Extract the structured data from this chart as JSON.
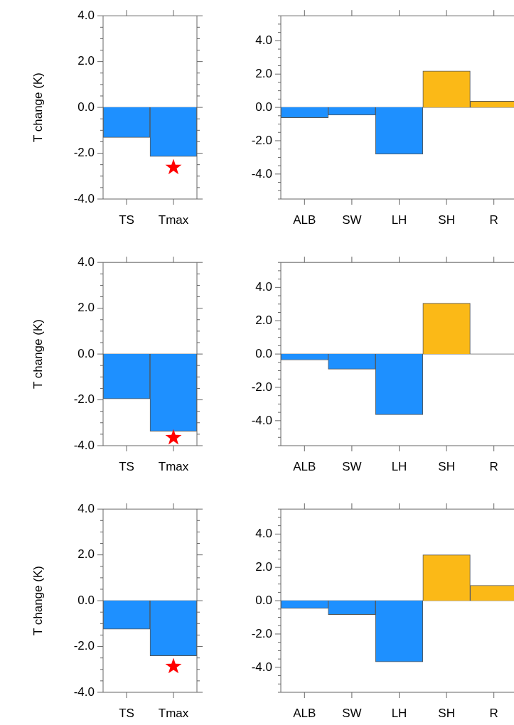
{
  "chart_data": [
    {
      "type": "bar",
      "ylabel": "T change (K)",
      "categories": [
        "TS",
        "Tmax"
      ],
      "ylim": [
        -4,
        4
      ],
      "yticks": [
        {
          "value": -4,
          "label": "-4.0"
        },
        {
          "value": -3.5,
          "label": null
        },
        {
          "value": -3,
          "label": null
        },
        {
          "value": -2.5,
          "label": null
        },
        {
          "value": -2,
          "label": "-2.0"
        },
        {
          "value": -1.5,
          "label": null
        },
        {
          "value": -1,
          "label": null
        },
        {
          "value": -0.5,
          "label": null
        },
        {
          "value": 0,
          "label": "0.0"
        },
        {
          "value": 0.5,
          "label": null
        },
        {
          "value": 1,
          "label": null
        },
        {
          "value": 1.5,
          "label": null
        },
        {
          "value": 2,
          "label": "2.0"
        },
        {
          "value": 2.5,
          "label": null
        },
        {
          "value": 3,
          "label": null
        },
        {
          "value": 3.5,
          "label": null
        },
        {
          "value": 4,
          "label": "4.0"
        }
      ],
      "grid": false,
      "marker": "star",
      "ref_lines": [
        {
          "axis": "y",
          "value": 0,
          "color": "#888888"
        }
      ],
      "series": [
        {
          "type": "bar",
          "color": "#1e90ff",
          "values": [
            -1.31,
            -2.14
          ]
        },
        {
          "type": "scatter",
          "color": "#ff0000",
          "x": [
            "Tmax"
          ],
          "values": [
            -2.62
          ]
        }
      ]
    },
    {
      "type": "bar",
      "categories": [
        "ALB",
        "SW",
        "LH",
        "SH",
        "R"
      ],
      "ylim": [
        -5.5,
        5.5
      ],
      "yticks": [
        {
          "value": -5.5,
          "label": null
        },
        {
          "value": -5,
          "label": null
        },
        {
          "value": -4.5,
          "label": null
        },
        {
          "value": -4,
          "label": "-4.0"
        },
        {
          "value": -3.5,
          "label": null
        },
        {
          "value": -3,
          "label": null
        },
        {
          "value": -2.5,
          "label": null
        },
        {
          "value": -2,
          "label": "-2.0"
        },
        {
          "value": -1.5,
          "label": null
        },
        {
          "value": -1,
          "label": null
        },
        {
          "value": -0.5,
          "label": null
        },
        {
          "value": 0,
          "label": "0.0"
        },
        {
          "value": 0.5,
          "label": null
        },
        {
          "value": 1,
          "label": null
        },
        {
          "value": 1.5,
          "label": null
        },
        {
          "value": 2,
          "label": "2.0"
        },
        {
          "value": 2.5,
          "label": null
        },
        {
          "value": 3,
          "label": null
        },
        {
          "value": 3.5,
          "label": null
        },
        {
          "value": 4,
          "label": "4.0"
        },
        {
          "value": 4.5,
          "label": null
        },
        {
          "value": 5,
          "label": null
        },
        {
          "value": 5.5,
          "label": null
        }
      ],
      "grid": false,
      "ref_lines": [
        {
          "axis": "y",
          "value": 0,
          "color": "#888888"
        }
      ],
      "values": [
        -0.62,
        -0.46,
        -2.81,
        2.19,
        0.37
      ],
      "colors": [
        "#1e90ff",
        "#1e90ff",
        "#1e90ff",
        "#fbb917",
        "#fbb917"
      ]
    },
    {
      "type": "bar",
      "ylabel": "T change (K)",
      "categories": [
        "TS",
        "Tmax"
      ],
      "ylim": [
        -4,
        4
      ],
      "yticks": [
        {
          "value": -4,
          "label": "-4.0"
        },
        {
          "value": -3.5,
          "label": null
        },
        {
          "value": -3,
          "label": null
        },
        {
          "value": -2.5,
          "label": null
        },
        {
          "value": -2,
          "label": "-2.0"
        },
        {
          "value": -1.5,
          "label": null
        },
        {
          "value": -1,
          "label": null
        },
        {
          "value": -0.5,
          "label": null
        },
        {
          "value": 0,
          "label": "0.0"
        },
        {
          "value": 0.5,
          "label": null
        },
        {
          "value": 1,
          "label": null
        },
        {
          "value": 1.5,
          "label": null
        },
        {
          "value": 2,
          "label": "2.0"
        },
        {
          "value": 2.5,
          "label": null
        },
        {
          "value": 3,
          "label": null
        },
        {
          "value": 3.5,
          "label": null
        },
        {
          "value": 4,
          "label": "4.0"
        }
      ],
      "grid": false,
      "marker": "star",
      "ref_lines": [
        {
          "axis": "y",
          "value": 0,
          "color": "#888888"
        }
      ],
      "series": [
        {
          "type": "bar",
          "color": "#1e90ff",
          "values": [
            -1.96,
            -3.37
          ]
        },
        {
          "type": "scatter",
          "color": "#ff0000",
          "x": [
            "Tmax"
          ],
          "values": [
            -3.65
          ]
        }
      ]
    },
    {
      "type": "bar",
      "categories": [
        "ALB",
        "SW",
        "LH",
        "SH",
        "R"
      ],
      "ylim": [
        -5.5,
        5.5
      ],
      "yticks": [
        {
          "value": -5.5,
          "label": null
        },
        {
          "value": -5,
          "label": null
        },
        {
          "value": -4.5,
          "label": null
        },
        {
          "value": -4,
          "label": "-4.0"
        },
        {
          "value": -3.5,
          "label": null
        },
        {
          "value": -3,
          "label": null
        },
        {
          "value": -2.5,
          "label": null
        },
        {
          "value": -2,
          "label": "-2.0"
        },
        {
          "value": -1.5,
          "label": null
        },
        {
          "value": -1,
          "label": null
        },
        {
          "value": -0.5,
          "label": null
        },
        {
          "value": 0,
          "label": "0.0"
        },
        {
          "value": 0.5,
          "label": null
        },
        {
          "value": 1,
          "label": null
        },
        {
          "value": 1.5,
          "label": null
        },
        {
          "value": 2,
          "label": "2.0"
        },
        {
          "value": 2.5,
          "label": null
        },
        {
          "value": 3,
          "label": null
        },
        {
          "value": 3.5,
          "label": null
        },
        {
          "value": 4,
          "label": "4.0"
        },
        {
          "value": 4.5,
          "label": null
        },
        {
          "value": 5,
          "label": null
        },
        {
          "value": 5.5,
          "label": null
        }
      ],
      "grid": false,
      "ref_lines": [
        {
          "axis": "y",
          "value": 0,
          "color": "#888888"
        }
      ],
      "values": [
        -0.36,
        -0.91,
        -3.64,
        3.05,
        0
      ],
      "colors": [
        "#1e90ff",
        "#1e90ff",
        "#1e90ff",
        "#fbb917",
        "#fbb917"
      ]
    },
    {
      "type": "bar",
      "ylabel": "T change (K)",
      "categories": [
        "TS",
        "Tmax"
      ],
      "ylim": [
        -4,
        4
      ],
      "yticks": [
        {
          "value": -4,
          "label": "-4.0"
        },
        {
          "value": -3.5,
          "label": null
        },
        {
          "value": -3,
          "label": null
        },
        {
          "value": -2.5,
          "label": null
        },
        {
          "value": -2,
          "label": "-2.0"
        },
        {
          "value": -1.5,
          "label": null
        },
        {
          "value": -1,
          "label": null
        },
        {
          "value": -0.5,
          "label": null
        },
        {
          "value": 0,
          "label": "0.0"
        },
        {
          "value": 0.5,
          "label": null
        },
        {
          "value": 1,
          "label": null
        },
        {
          "value": 1.5,
          "label": null
        },
        {
          "value": 2,
          "label": "2.0"
        },
        {
          "value": 2.5,
          "label": null
        },
        {
          "value": 3,
          "label": null
        },
        {
          "value": 3.5,
          "label": null
        },
        {
          "value": 4,
          "label": "4.0"
        }
      ],
      "grid": false,
      "marker": "star",
      "ref_lines": [
        {
          "axis": "y",
          "value": 0,
          "color": "#888888"
        }
      ],
      "series": [
        {
          "type": "bar",
          "color": "#1e90ff",
          "values": [
            -1.24,
            -2.41
          ]
        },
        {
          "type": "scatter",
          "color": "#ff0000",
          "x": [
            "Tmax"
          ],
          "values": [
            -2.87
          ]
        }
      ]
    },
    {
      "type": "bar",
      "categories": [
        "ALB",
        "SW",
        "LH",
        "SH",
        "R"
      ],
      "ylim": [
        -5.5,
        5.5
      ],
      "yticks": [
        {
          "value": -5.5,
          "label": null
        },
        {
          "value": -5,
          "label": null
        },
        {
          "value": -4.5,
          "label": null
        },
        {
          "value": -4,
          "label": "-4.0"
        },
        {
          "value": -3.5,
          "label": null
        },
        {
          "value": -3,
          "label": null
        },
        {
          "value": -2.5,
          "label": null
        },
        {
          "value": -2,
          "label": "-2.0"
        },
        {
          "value": -1.5,
          "label": null
        },
        {
          "value": -1,
          "label": null
        },
        {
          "value": -0.5,
          "label": null
        },
        {
          "value": 0,
          "label": "0.0"
        },
        {
          "value": 0.5,
          "label": null
        },
        {
          "value": 1,
          "label": null
        },
        {
          "value": 1.5,
          "label": null
        },
        {
          "value": 2,
          "label": "2.0"
        },
        {
          "value": 2.5,
          "label": null
        },
        {
          "value": 3,
          "label": null
        },
        {
          "value": 3.5,
          "label": null
        },
        {
          "value": 4,
          "label": "4.0"
        },
        {
          "value": 4.5,
          "label": null
        },
        {
          "value": 5,
          "label": null
        },
        {
          "value": 5.5,
          "label": null
        }
      ],
      "grid": false,
      "ref_lines": [
        {
          "axis": "y",
          "value": 0,
          "color": "#888888"
        }
      ],
      "values": [
        -0.46,
        -0.83,
        -3.67,
        2.75,
        0.92
      ],
      "colors": [
        "#1e90ff",
        "#1e90ff",
        "#1e90ff",
        "#fbb917",
        "#fbb917"
      ]
    }
  ]
}
